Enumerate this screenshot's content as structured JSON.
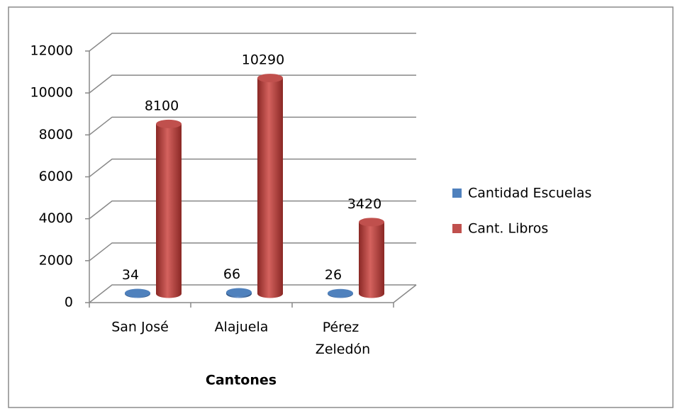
{
  "chart_data": {
    "type": "bar3d",
    "x_label": "Cantones",
    "categories": [
      "San José",
      "Alajuela",
      "Pérez Zeledón"
    ],
    "series": [
      {
        "name": "Cantidad Escuelas",
        "color": "#4f81bd",
        "values": [
          34,
          66,
          26
        ]
      },
      {
        "name": "Cant. Libros",
        "color": "#c0504d",
        "values": [
          8100,
          10290,
          3420
        ]
      }
    ],
    "ylim": [
      0,
      12000
    ],
    "yticks": [
      0,
      2000,
      4000,
      6000,
      8000,
      10000,
      12000
    ],
    "grid": true,
    "legend": "right"
  }
}
